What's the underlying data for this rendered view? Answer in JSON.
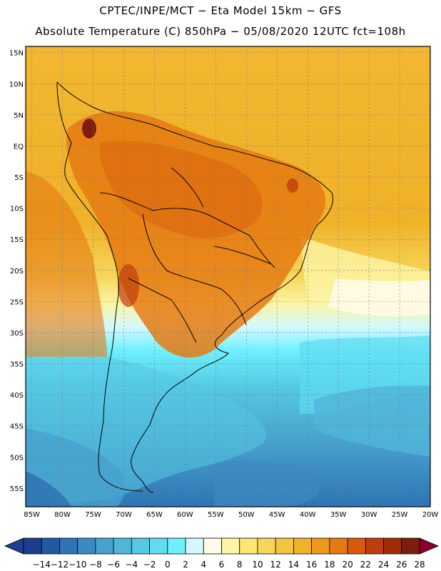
{
  "title_line1": "CPTEC/INPE/MCT −  Eta Model 15km − GFS",
  "title_line2": "Absolute Temperature (C) 850hPa − 05/08/2020 12UTC fct=108h",
  "map": {
    "lat_labels": [
      "15N",
      "10N",
      "5N",
      "EQ",
      "5S",
      "10S",
      "15S",
      "20S",
      "25S",
      "30S",
      "35S",
      "40S",
      "45S",
      "50S",
      "55S"
    ],
    "lon_labels": [
      "85W",
      "80W",
      "75W",
      "70W",
      "65W",
      "60W",
      "55W",
      "50W",
      "45W",
      "40W",
      "35W",
      "30W",
      "25W",
      "20W"
    ],
    "lat_range": [
      -58,
      16
    ],
    "lon_range": [
      -86,
      -20
    ],
    "grid": "dashed"
  },
  "colorbar": {
    "labels": [
      "−14",
      "−12",
      "−10",
      "−8",
      "−6",
      "−4",
      "−2",
      "0",
      "2",
      "4",
      "6",
      "8",
      "10",
      "12",
      "14",
      "16",
      "18",
      "20",
      "22",
      "24",
      "26",
      "28"
    ],
    "colors": [
      "#1b3f8e",
      "#1f5aa3",
      "#2f74b5",
      "#3d8ac2",
      "#47a1cd",
      "#51b5d9",
      "#55c8e2",
      "#5fdcef",
      "#6ff0ff",
      "#d3f8ff",
      "#fffbe8",
      "#fdf5a6",
      "#fbe676",
      "#f6d65a",
      "#f2c440",
      "#efb229",
      "#ec9a1a",
      "#e57a12",
      "#d75a0d",
      "#bf3d0b",
      "#a02c0c",
      "#7d1d0e",
      "#8b0029"
    ]
  }
}
